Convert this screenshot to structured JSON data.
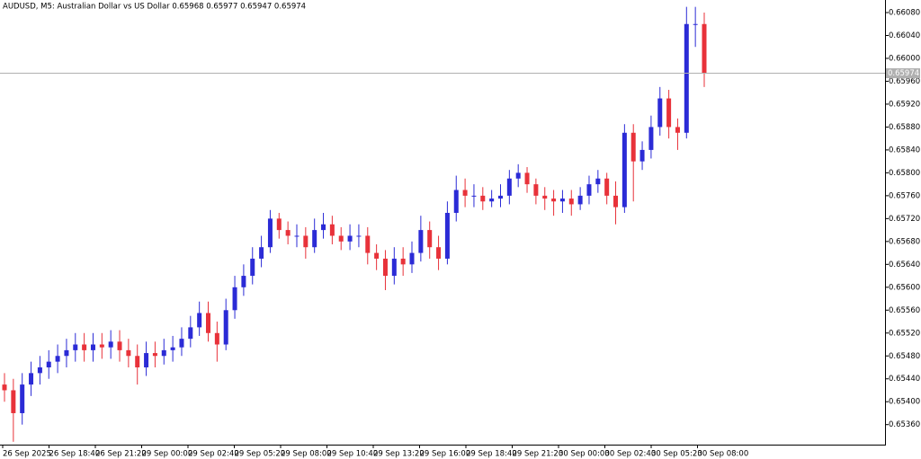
{
  "chart_data": {
    "type": "candlestick",
    "title": "AUDUSD, M5:  Australian Dollar vs US Dollar  0.65968 0.65977 0.65947 0.65974",
    "colors": {
      "up": "#2b2bd6",
      "down": "#e8323a"
    },
    "open": [
      0.6543,
      0.6542,
      0.6538,
      0.6543,
      0.6545,
      0.6546,
      0.6547,
      0.6548,
      0.6549,
      0.655,
      0.6549,
      0.655,
      0.65495,
      0.65505,
      0.6549,
      0.6548,
      0.6546,
      0.65485,
      0.6548,
      0.6549,
      0.65495,
      0.6551,
      0.6553,
      0.65555,
      0.6552,
      0.655,
      0.6556,
      0.656,
      0.6562,
      0.6565,
      0.6567,
      0.6572,
      0.657,
      0.6569,
      0.6569,
      0.6567,
      0.657,
      0.6571,
      0.6569,
      0.6568,
      0.6569,
      0.6569,
      0.6566,
      0.6565,
      0.6562,
      0.6565,
      0.6564,
      0.6566,
      0.657,
      0.6567,
      0.6565,
      0.6573,
      0.6577,
      0.6576,
      0.6576,
      0.6575,
      0.65755,
      0.6576,
      0.6579,
      0.658,
      0.6578,
      0.6576,
      0.65755,
      0.6575,
      0.65755,
      0.65745,
      0.6576,
      0.6578,
      0.6579,
      0.6576,
      0.6574,
      0.6587,
      0.6582,
      0.6584,
      0.6588,
      0.6593,
      0.6588,
      0.6587,
      0.6606,
      0.6606
    ],
    "high": [
      0.6545,
      0.6544,
      0.6545,
      0.6547,
      0.6548,
      0.6549,
      0.655,
      0.6551,
      0.6552,
      0.6552,
      0.6552,
      0.6552,
      0.65525,
      0.65525,
      0.6551,
      0.655,
      0.65505,
      0.65505,
      0.6551,
      0.65515,
      0.6553,
      0.6555,
      0.65575,
      0.65575,
      0.6554,
      0.6558,
      0.6562,
      0.6564,
      0.6567,
      0.6569,
      0.65735,
      0.6573,
      0.65715,
      0.6571,
      0.65705,
      0.6572,
      0.6573,
      0.65725,
      0.65705,
      0.6571,
      0.6571,
      0.65705,
      0.65675,
      0.65665,
      0.6567,
      0.6567,
      0.6568,
      0.65725,
      0.65715,
      0.6569,
      0.6575,
      0.65795,
      0.6579,
      0.6578,
      0.65775,
      0.6577,
      0.6578,
      0.65805,
      0.65815,
      0.6581,
      0.6579,
      0.65775,
      0.6577,
      0.6577,
      0.6577,
      0.65775,
      0.65795,
      0.65805,
      0.658,
      0.65785,
      0.65885,
      0.65885,
      0.65855,
      0.659,
      0.6595,
      0.65945,
      0.65895,
      0.6609,
      0.6609,
      0.6608
    ],
    "low": [
      0.654,
      0.6533,
      0.6536,
      0.6541,
      0.6543,
      0.6544,
      0.6545,
      0.6546,
      0.6547,
      0.6547,
      0.6547,
      0.65475,
      0.65475,
      0.6547,
      0.6546,
      0.6543,
      0.65445,
      0.6546,
      0.65465,
      0.6547,
      0.6548,
      0.65495,
      0.65515,
      0.65505,
      0.6547,
      0.6549,
      0.65545,
      0.65585,
      0.65605,
      0.65635,
      0.6566,
      0.65685,
      0.65675,
      0.6567,
      0.6565,
      0.6566,
      0.65685,
      0.65675,
      0.65665,
      0.65665,
      0.6567,
      0.6564,
      0.6563,
      0.65595,
      0.65605,
      0.6562,
      0.65625,
      0.65645,
      0.6565,
      0.6563,
      0.6564,
      0.65715,
      0.6574,
      0.6574,
      0.65735,
      0.6574,
      0.6574,
      0.65745,
      0.65775,
      0.65765,
      0.65745,
      0.65735,
      0.65725,
      0.6573,
      0.65725,
      0.65735,
      0.65745,
      0.65765,
      0.65745,
      0.6571,
      0.6573,
      0.6575,
      0.65805,
      0.65825,
      0.65865,
      0.6586,
      0.6584,
      0.6586,
      0.6602,
      0.6595
    ],
    "close": [
      0.6542,
      0.6538,
      0.6543,
      0.6545,
      0.6546,
      0.6547,
      0.6548,
      0.6549,
      0.655,
      0.6549,
      0.655,
      0.65495,
      0.65505,
      0.6549,
      0.6548,
      0.6546,
      0.65485,
      0.6548,
      0.6549,
      0.65495,
      0.6551,
      0.6553,
      0.65555,
      0.6552,
      0.655,
      0.6556,
      0.656,
      0.6562,
      0.6565,
      0.6567,
      0.6572,
      0.657,
      0.6569,
      0.6569,
      0.6567,
      0.657,
      0.6571,
      0.6569,
      0.6568,
      0.6569,
      0.6569,
      0.6566,
      0.6565,
      0.6562,
      0.6565,
      0.6564,
      0.6566,
      0.657,
      0.6567,
      0.6565,
      0.6573,
      0.6577,
      0.6576,
      0.6576,
      0.6575,
      0.65755,
      0.6576,
      0.6579,
      0.658,
      0.6578,
      0.6576,
      0.65755,
      0.6575,
      0.65755,
      0.65745,
      0.6576,
      0.6578,
      0.6579,
      0.6576,
      0.6574,
      0.6587,
      0.6582,
      0.6584,
      0.6588,
      0.6593,
      0.6588,
      0.6587,
      0.6606,
      0.6606,
      0.65974
    ],
    "x_labels": [
      "26 Sep 2025",
      "26 Sep 18:40",
      "26 Sep 21:20",
      "29 Sep 00:00",
      "29 Sep 02:40",
      "29 Sep 05:20",
      "29 Sep 08:00",
      "29 Sep 10:40",
      "29 Sep 13:20",
      "29 Sep 16:00",
      "29 Sep 18:40",
      "29 Sep 21:20",
      "30 Sep 00:00",
      "30 Sep 02:40",
      "30 Sep 05:20",
      "30 Sep 08:00"
    ],
    "ylim": [
      0.65325,
      0.66102
    ],
    "yticks": [
      {
        "value": 0.6536,
        "label": "0.65360"
      },
      {
        "value": 0.654,
        "label": "0.65400"
      },
      {
        "value": 0.6544,
        "label": "0.65440"
      },
      {
        "value": 0.6548,
        "label": "0.65480"
      },
      {
        "value": 0.6552,
        "label": "0.65520"
      },
      {
        "value": 0.6556,
        "label": "0.65560"
      },
      {
        "value": 0.656,
        "label": "0.65600"
      },
      {
        "value": 0.6564,
        "label": "0.65640"
      },
      {
        "value": 0.6568,
        "label": "0.65680"
      },
      {
        "value": 0.6572,
        "label": "0.65720"
      },
      {
        "value": 0.6576,
        "label": "0.65760"
      },
      {
        "value": 0.658,
        "label": "0.65800"
      },
      {
        "value": 0.6584,
        "label": "0.65840"
      },
      {
        "value": 0.6588,
        "label": "0.65880"
      },
      {
        "value": 0.6592,
        "label": "0.65920"
      },
      {
        "value": 0.6596,
        "label": "0.65960"
      },
      {
        "value": 0.66,
        "label": "0.66000"
      },
      {
        "value": 0.6604,
        "label": "0.66040"
      },
      {
        "value": 0.6608,
        "label": "0.66080"
      }
    ],
    "last_price": {
      "value": 0.65974,
      "label": "0.65974"
    }
  }
}
